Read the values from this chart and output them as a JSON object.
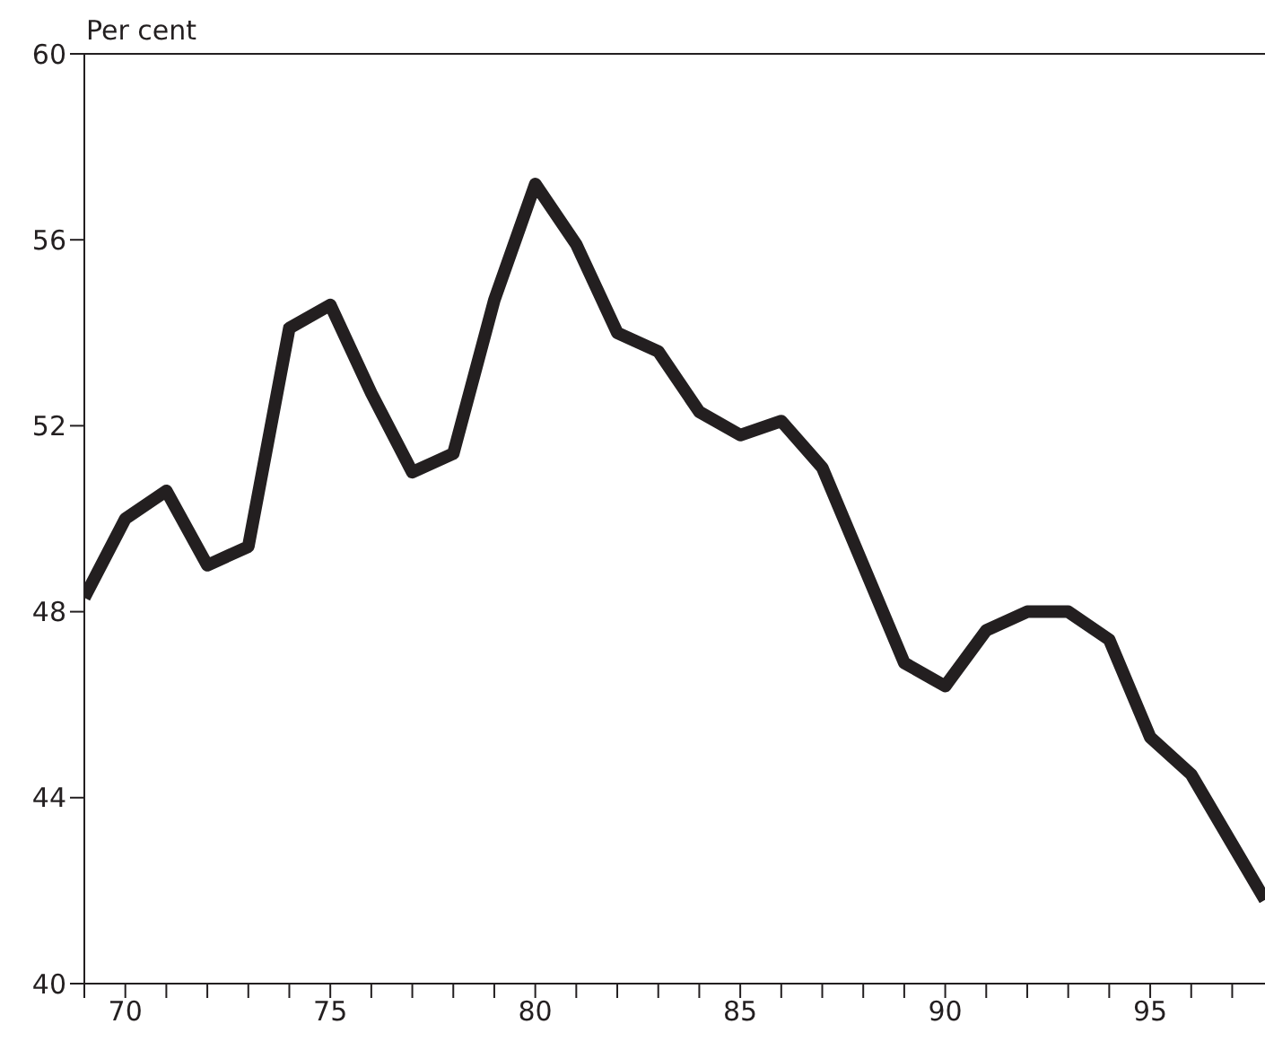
{
  "chart_data": {
    "type": "line",
    "ylabel": "Per cent",
    "x": [
      69,
      70,
      71,
      72,
      73,
      74,
      75,
      76,
      77,
      78,
      79,
      80,
      81,
      82,
      83,
      84,
      85,
      86,
      87,
      88,
      89,
      90,
      91,
      92,
      93,
      94,
      95,
      96,
      97,
      97.8
    ],
    "series": [
      {
        "color": "#231f20",
        "values": [
          48.3,
          50.0,
          50.6,
          49.0,
          49.4,
          54.1,
          54.6,
          52.7,
          51.0,
          51.4,
          54.7,
          57.2,
          55.9,
          54.0,
          53.6,
          52.3,
          51.8,
          52.1,
          51.1,
          49.0,
          46.9,
          46.4,
          47.6,
          48.0,
          48.0,
          47.4,
          45.3,
          44.5,
          43.0,
          41.8
        ]
      }
    ],
    "xlim": [
      69,
      97.8
    ],
    "xticks": [
      {
        "value": 69,
        "label": null
      },
      70,
      {
        "value": 71,
        "label": null
      },
      {
        "value": 72,
        "label": null
      },
      {
        "value": 73,
        "label": null
      },
      {
        "value": 74,
        "label": null
      },
      75,
      {
        "value": 76,
        "label": null
      },
      {
        "value": 77,
        "label": null
      },
      {
        "value": 78,
        "label": null
      },
      {
        "value": 79,
        "label": null
      },
      80,
      {
        "value": 81,
        "label": null
      },
      {
        "value": 82,
        "label": null
      },
      {
        "value": 83,
        "label": null
      },
      {
        "value": 84,
        "label": null
      },
      85,
      {
        "value": 86,
        "label": null
      },
      {
        "value": 87,
        "label": null
      },
      {
        "value": 88,
        "label": null
      },
      {
        "value": 89,
        "label": null
      },
      90,
      {
        "value": 91,
        "label": null
      },
      {
        "value": 92,
        "label": null
      },
      {
        "value": 93,
        "label": null
      },
      {
        "value": 94,
        "label": null
      },
      95,
      {
        "value": 96,
        "label": null
      },
      {
        "value": 97,
        "label": null
      }
    ],
    "ylim": [
      40,
      60
    ],
    "yticks": [
      40,
      44,
      48,
      52,
      56,
      60
    ],
    "marker": "none",
    "line_style": "solid"
  }
}
